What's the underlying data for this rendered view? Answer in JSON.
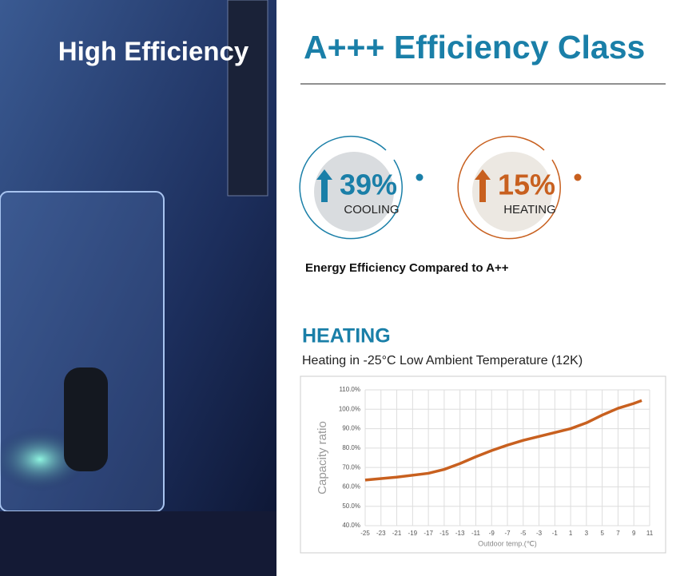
{
  "left": {
    "title": "High Efficiency"
  },
  "header": {
    "title": "A+++ Efficiency Class"
  },
  "badges": [
    {
      "value": "39%",
      "label": "COOLING",
      "color": "#1a7fa8"
    },
    {
      "value": "15%",
      "label": "HEATING",
      "color": "#c8601f"
    }
  ],
  "caption": "Energy Efficiency Compared to A++",
  "heating": {
    "title": "HEATING",
    "subtitle": "Heating in -25°C Low Ambient Temperature (12K)"
  },
  "chart_data": {
    "type": "line",
    "ylabel": "Capacity ratio",
    "xlabel": "Outdoor temp.(℃)",
    "x": [
      -25,
      -21,
      -17,
      -15,
      -13,
      -11,
      -9,
      -7,
      -5,
      -3,
      -1,
      1,
      3,
      5,
      7,
      9,
      10
    ],
    "series": [
      {
        "name": "Capacity ratio",
        "color": "#c8601f",
        "values": [
          63.5,
          65,
          67,
          69,
          72,
          75.5,
          78.7,
          81.5,
          84,
          86,
          88,
          90,
          93,
          97,
          100.5,
          103,
          104.5
        ]
      }
    ],
    "xlim": [
      -25,
      11
    ],
    "xticks": [
      -25,
      -23,
      -21,
      -19,
      -17,
      -15,
      -13,
      -11,
      -9,
      -7,
      -5,
      -3,
      -1,
      1,
      3,
      5,
      7,
      9,
      11
    ],
    "ylim": [
      40,
      110
    ],
    "yticks": [
      {
        "value": 40,
        "label": "40.0%"
      },
      {
        "value": 50,
        "label": "50.0%"
      },
      {
        "value": 60,
        "label": "60.0%"
      },
      {
        "value": 70,
        "label": "70.0%"
      },
      {
        "value": 80,
        "label": "80.0%"
      },
      {
        "value": 90,
        "label": "90.0%"
      },
      {
        "value": 100,
        "label": "100.0%"
      },
      {
        "value": 110,
        "label": "110.0%"
      }
    ],
    "grid": true
  }
}
